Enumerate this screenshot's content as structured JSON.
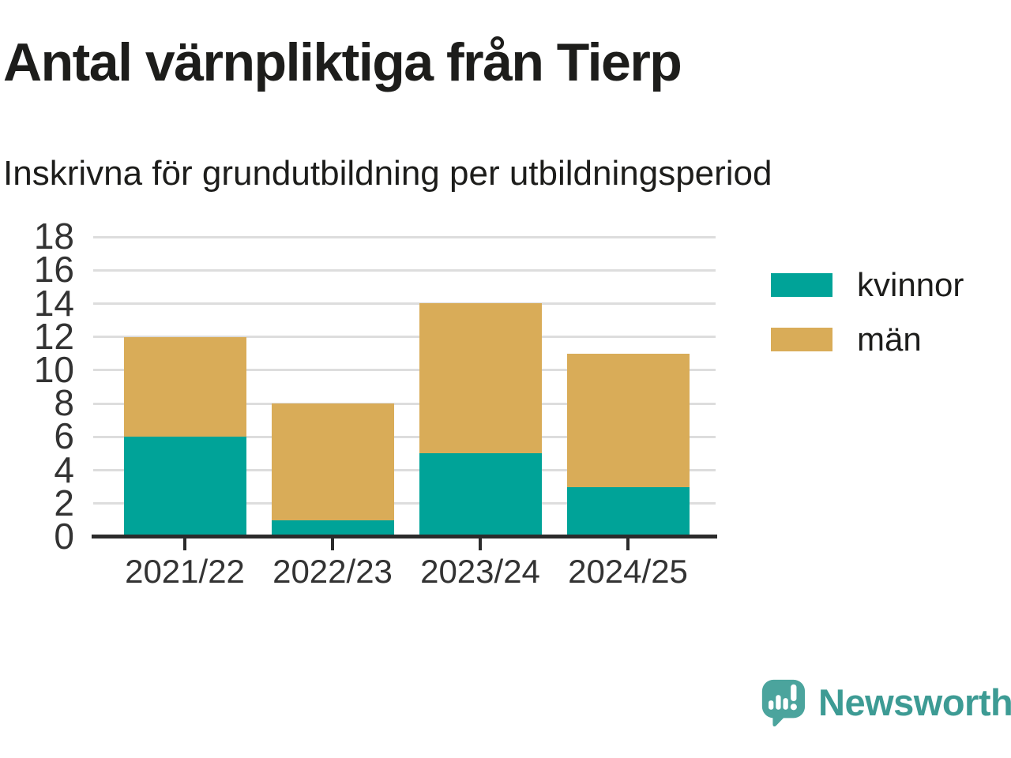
{
  "header": {
    "title": "Antal värnpliktiga från Tierp",
    "subtitle": "Inskrivna för grundutbildning per utbildningsperiod"
  },
  "chart_data": {
    "type": "bar",
    "stacked": true,
    "title": "Antal värnpliktiga från Tierp",
    "subtitle": "Inskrivna för grundutbildning per utbildningsperiod",
    "categories": [
      "2021/22",
      "2022/23",
      "2023/24",
      "2024/25"
    ],
    "series": [
      {
        "name": "kvinnor",
        "color": "#00a398",
        "values": [
          6,
          1,
          5,
          3
        ]
      },
      {
        "name": "män",
        "color": "#d9ac58",
        "values": [
          6,
          7,
          9,
          8
        ]
      }
    ],
    "stack_totals": [
      12,
      8,
      14,
      11
    ],
    "xlabel": "",
    "ylabel": "",
    "ylim": [
      0,
      18
    ],
    "ytick_step": 2,
    "yticks": [
      0,
      2,
      4,
      6,
      8,
      10,
      12,
      14,
      16,
      18
    ],
    "grid": true,
    "legend_position": "right"
  },
  "branding": {
    "name": "Newsworthy",
    "logo_icon": "speech-bubble-bar-chart-icon",
    "text_color": "#3d9b94",
    "bubble_color": "#4ba49d"
  },
  "colors": {
    "series_kvinnor": "#00a398",
    "series_man": "#d9ac58",
    "axis": "#2b2b2b",
    "gridline": "#dddddd",
    "title_text": "#1d1d1b",
    "tick_label": "#333333",
    "background": "#ffffff"
  }
}
